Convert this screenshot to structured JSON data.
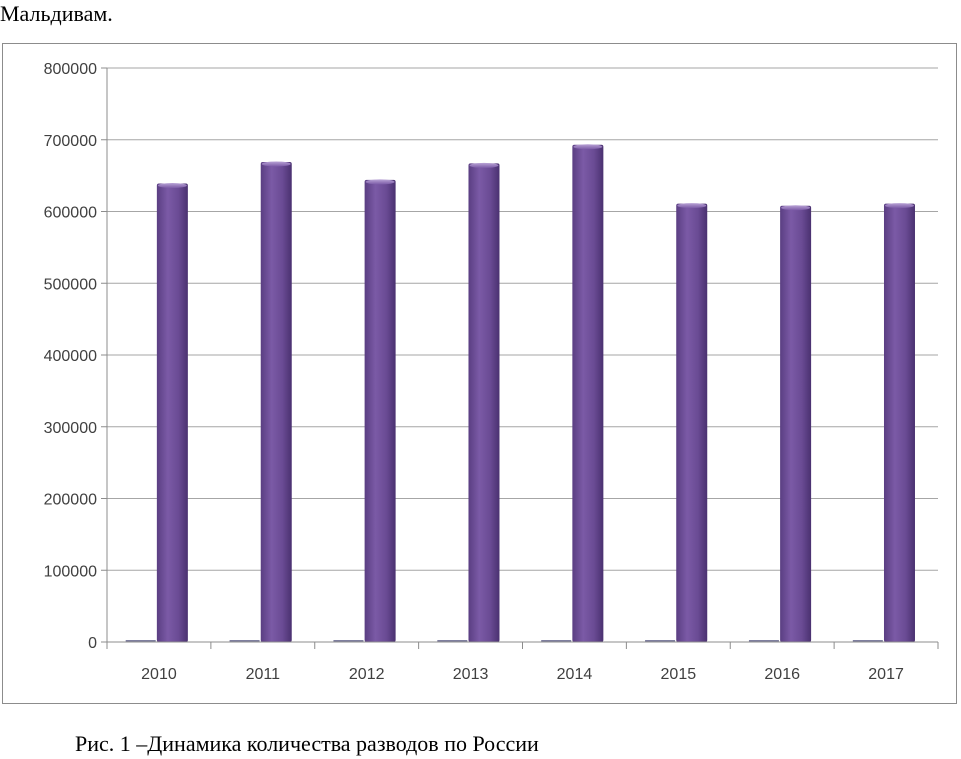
{
  "document": {
    "top_text": "Мальдивам.",
    "caption": "Рис. 1 –Динамика количества разводов по России"
  },
  "chart_data": {
    "type": "bar",
    "title": "",
    "xlabel": "",
    "ylabel": "",
    "categories": [
      "2010",
      "2011",
      "2012",
      "2013",
      "2014",
      "2015",
      "2016",
      "2017"
    ],
    "series": [
      {
        "values": [
          0,
          0,
          0,
          0,
          0,
          0,
          0,
          0
        ],
        "color": "#4f81bd"
      },
      {
        "values": [
          639000,
          669000,
          644000,
          667000,
          693000,
          611000,
          608000,
          611000
        ],
        "color": "#6a4c93"
      }
    ],
    "ylim": [
      0,
      800000
    ],
    "yticks": [
      0,
      100000,
      200000,
      300000,
      400000,
      500000,
      600000,
      700000,
      800000
    ],
    "ytick_labels": [
      "0",
      "100000",
      "200000",
      "300000",
      "400000",
      "500000",
      "600000",
      "700000",
      "800000"
    ],
    "grid": true,
    "legend": "none"
  }
}
